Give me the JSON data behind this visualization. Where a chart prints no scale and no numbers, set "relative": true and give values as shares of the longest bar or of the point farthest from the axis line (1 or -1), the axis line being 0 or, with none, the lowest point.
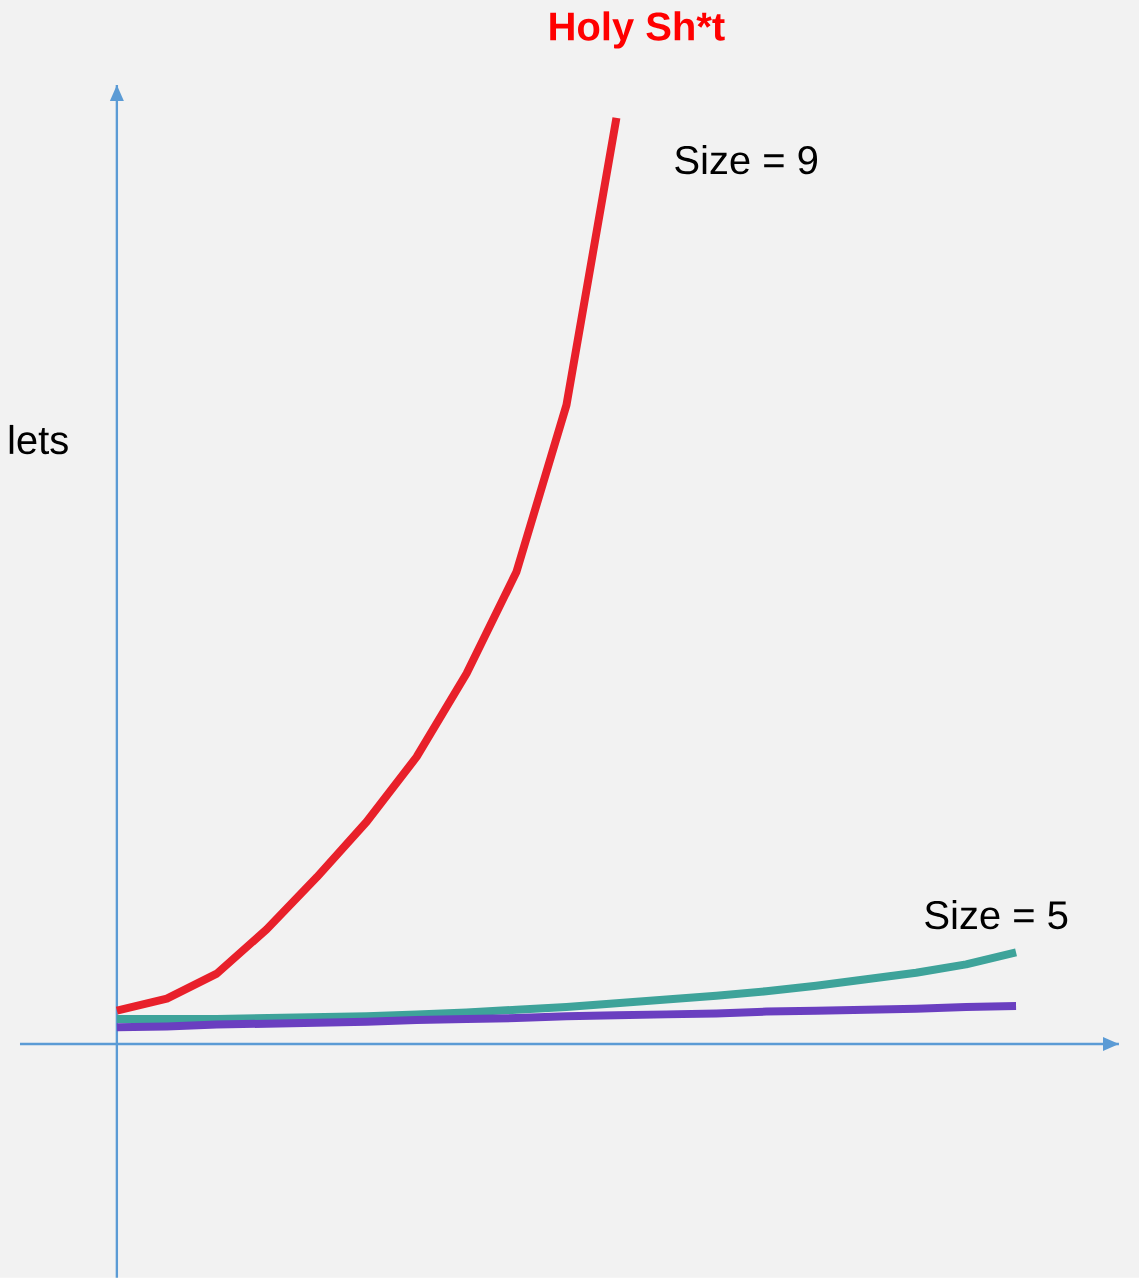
{
  "chart_data": {
    "type": "line",
    "title": "Holy Sh*t",
    "ylabel": "lets",
    "relative": true,
    "categories": [
      null,
      null,
      null,
      null,
      null,
      null,
      null,
      null,
      null,
      null,
      null,
      null,
      null,
      null,
      null,
      null,
      null,
      null,
      null
    ],
    "series": [
      {
        "name": "Size = 9",
        "color": "#e8202a",
        "values": [
          0.036,
          0.049,
          0.076,
          0.124,
          0.18,
          0.24,
          0.31,
          0.4,
          0.51,
          0.69,
          1.0,
          null,
          null,
          null,
          null,
          null,
          null,
          null,
          null
        ]
      },
      {
        "name": "Size = 5",
        "color": "#3ea39a",
        "values": [
          0.027,
          0.027,
          0.027,
          0.028,
          0.029,
          0.03,
          0.032,
          0.034,
          0.037,
          0.04,
          0.044,
          0.048,
          0.052,
          0.057,
          0.063,
          0.07,
          0.077,
          0.086,
          0.099
        ]
      },
      {
        "color": "#6a3fc0",
        "values": [
          0.018,
          0.019,
          0.021,
          0.022,
          0.023,
          0.024,
          0.026,
          0.027,
          0.028,
          0.03,
          0.031,
          0.032,
          0.033,
          0.035,
          0.036,
          0.037,
          0.038,
          0.04,
          0.041
        ]
      }
    ]
  }
}
